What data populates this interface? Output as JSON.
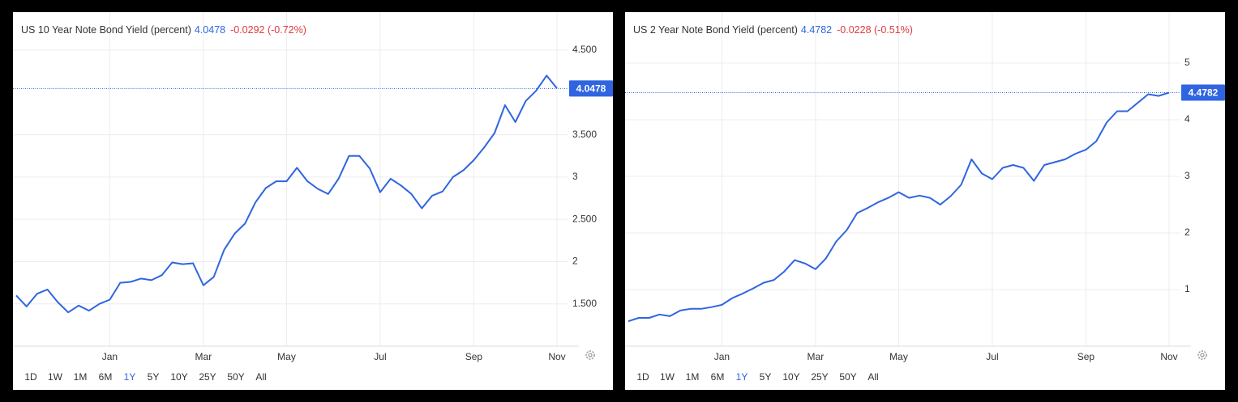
{
  "chart_data": [
    {
      "type": "line",
      "title": "US 10 Year Note Bond Yield (percent)",
      "change_label": "-0.0292 (-0.72%)",
      "color": "#2f65e0",
      "categories": [
        null,
        null,
        null,
        null,
        null,
        null,
        null,
        null,
        null,
        "Jan",
        null,
        null,
        null,
        null,
        null,
        null,
        null,
        null,
        "Mar",
        null,
        null,
        null,
        null,
        null,
        null,
        null,
        "May",
        null,
        null,
        null,
        null,
        null,
        null,
        null,
        null,
        "Jul",
        null,
        null,
        null,
        null,
        null,
        null,
        null,
        null,
        "Sep",
        null,
        null,
        null,
        null,
        null,
        null,
        null,
        "Nov"
      ],
      "values": [
        1.6,
        1.47,
        1.62,
        1.67,
        1.52,
        1.4,
        1.48,
        1.42,
        1.5,
        1.55,
        1.75,
        1.76,
        1.8,
        1.78,
        1.84,
        1.99,
        1.97,
        1.98,
        1.72,
        1.82,
        2.14,
        2.33,
        2.45,
        2.7,
        2.87,
        2.95,
        2.95,
        3.11,
        2.95,
        2.86,
        2.8,
        2.98,
        3.25,
        3.25,
        3.1,
        2.82,
        2.98,
        2.9,
        2.8,
        2.63,
        2.78,
        2.83,
        3.0,
        3.08,
        3.2,
        3.35,
        3.52,
        3.85,
        3.65,
        3.9,
        4.02,
        4.2,
        4.0478
      ],
      "ylim": [
        1.0,
        4.95
      ],
      "yticks": [
        {
          "value": 4.5,
          "label": "4.500"
        },
        {
          "value": 3.5,
          "label": "3.500"
        },
        3,
        {
          "value": 2.5,
          "label": "2.500"
        },
        2,
        {
          "value": 1.5,
          "label": "1.500"
        }
      ],
      "grid": true,
      "ranges": [
        "1D",
        "1W",
        "1M",
        "6M",
        "1Y",
        "5Y",
        "10Y",
        "25Y",
        "50Y",
        "All"
      ],
      "selected_range": "1Y"
    },
    {
      "type": "line",
      "title": "US 2 Year Note Bond Yield (percent)",
      "change_label": "-0.0228 (-0.51%)",
      "color": "#2f65e0",
      "categories": [
        null,
        null,
        null,
        null,
        null,
        null,
        null,
        null,
        null,
        "Jan",
        null,
        null,
        null,
        null,
        null,
        null,
        null,
        null,
        "Mar",
        null,
        null,
        null,
        null,
        null,
        null,
        null,
        "May",
        null,
        null,
        null,
        null,
        null,
        null,
        null,
        null,
        "Jul",
        null,
        null,
        null,
        null,
        null,
        null,
        null,
        null,
        "Sep",
        null,
        null,
        null,
        null,
        null,
        null,
        null,
        "Nov"
      ],
      "values": [
        0.44,
        0.5,
        0.5,
        0.56,
        0.53,
        0.63,
        0.66,
        0.66,
        0.69,
        0.73,
        0.85,
        0.93,
        1.02,
        1.12,
        1.17,
        1.32,
        1.52,
        1.46,
        1.36,
        1.55,
        1.85,
        2.05,
        2.35,
        2.44,
        2.54,
        2.62,
        2.72,
        2.62,
        2.66,
        2.62,
        2.5,
        2.65,
        2.85,
        3.3,
        3.05,
        2.95,
        3.15,
        3.2,
        3.15,
        2.92,
        3.2,
        3.25,
        3.3,
        3.4,
        3.47,
        3.62,
        3.95,
        4.15,
        4.15,
        4.3,
        4.45,
        4.42,
        4.4782
      ],
      "ylim": [
        0,
        5.9
      ],
      "yticks": [
        5,
        4,
        3,
        2,
        1
      ],
      "grid": true,
      "ranges": [
        "1D",
        "1W",
        "1M",
        "6M",
        "1Y",
        "5Y",
        "10Y",
        "25Y",
        "50Y",
        "All"
      ],
      "selected_range": "1Y"
    }
  ]
}
